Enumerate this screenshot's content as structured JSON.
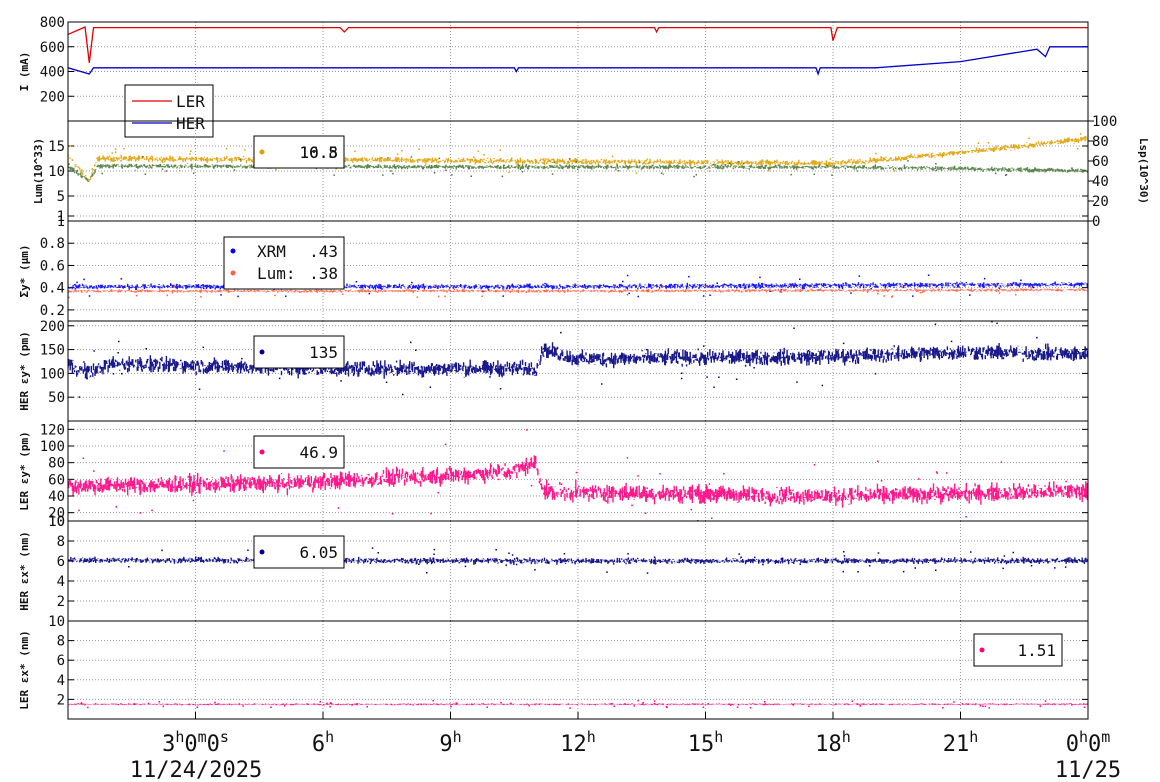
{
  "chart_data": {
    "type": "line",
    "x_axis": {
      "ticks": [
        {
          "hour": 3,
          "main": "3",
          "sup": "h",
          "main2": "0",
          "sup2": "m",
          "main3": "0",
          "sup3": "s"
        },
        {
          "hour": 6,
          "main": "6",
          "sup": "h"
        },
        {
          "hour": 9,
          "main": "9",
          "sup": "h"
        },
        {
          "hour": 12,
          "main": "12",
          "sup": "h"
        },
        {
          "hour": 15,
          "main": "15",
          "sup": "h"
        },
        {
          "hour": 18,
          "main": "18",
          "sup": "h"
        },
        {
          "hour": 21,
          "main": "21",
          "sup": "h"
        },
        {
          "hour": 24,
          "main": "0",
          "sup": "h",
          "main2": "0",
          "sup2": "m"
        }
      ],
      "start_date": "11/24/2025",
      "end_date": "11/25",
      "range_hours": [
        0.0,
        24.0
      ]
    },
    "panels": [
      {
        "ylabel": "I (mA)",
        "ylim": [
          0,
          800
        ],
        "yticks": [
          "200",
          "400",
          "600",
          "800"
        ],
        "legend": [
          {
            "label": "LER",
            "color": "#e00000"
          },
          {
            "label": "HER",
            "color": "#0000cc"
          }
        ],
        "series": [
          {
            "name": "LER",
            "color": "#e00000",
            "kind": "line",
            "points": [
              [
                0.0,
                700
              ],
              [
                0.4,
                760
              ],
              [
                0.5,
                470
              ],
              [
                0.6,
                755
              ],
              [
                6.4,
                755
              ],
              [
                6.5,
                720
              ],
              [
                6.6,
                755
              ],
              [
                13.8,
                755
              ],
              [
                13.85,
                720
              ],
              [
                13.9,
                755
              ],
              [
                17.95,
                755
              ],
              [
                18.0,
                650
              ],
              [
                18.1,
                755
              ],
              [
                24.0,
                755
              ]
            ]
          },
          {
            "name": "HER",
            "color": "#0000cc",
            "kind": "line",
            "points": [
              [
                0.0,
                430
              ],
              [
                0.5,
                380
              ],
              [
                0.6,
                430
              ],
              [
                10.5,
                430
              ],
              [
                10.55,
                400
              ],
              [
                10.6,
                430
              ],
              [
                17.6,
                430
              ],
              [
                17.65,
                380
              ],
              [
                17.7,
                430
              ],
              [
                19.0,
                430
              ],
              [
                21.0,
                480
              ],
              [
                22.8,
                580
              ],
              [
                23.0,
                520
              ],
              [
                23.1,
                600
              ],
              [
                24.0,
                600
              ]
            ]
          }
        ]
      },
      {
        "ylabel": "Lum(10^33)",
        "ylim": [
          0,
          20
        ],
        "yticks": [
          "1",
          "5",
          "10",
          "15"
        ],
        "ylabel_right": "Lsp(10^30)",
        "yticks_right": [
          "0",
          "20",
          "40",
          "60",
          "80",
          "100"
        ],
        "legend_value": "16.8",
        "legend_value_overlap": "10.5",
        "series": [
          {
            "name": "Lum",
            "color": "#e0a000",
            "kind": "noisy",
            "noise": 0.5,
            "points": [
              [
                0.0,
                13.0
              ],
              [
                0.5,
                8.0
              ],
              [
                0.7,
                12.5
              ],
              [
                10.5,
                12.0
              ],
              [
                18.0,
                11.5
              ],
              [
                19.5,
                12.5
              ],
              [
                22.0,
                14.5
              ],
              [
                23.5,
                16.0
              ],
              [
                24.0,
                16.5
              ]
            ]
          },
          {
            "name": "Lsp",
            "color": "#4a7a3a",
            "kind": "noisy",
            "noise": 0.4,
            "points": [
              [
                0.0,
                11.0
              ],
              [
                0.5,
                8.0
              ],
              [
                0.7,
                11.0
              ],
              [
                10.5,
                10.8
              ],
              [
                18.0,
                10.8
              ],
              [
                21.0,
                10.5
              ],
              [
                24.0,
                10.0
              ]
            ]
          }
        ]
      },
      {
        "ylabel": "Σy* (μm)",
        "ylim": [
          0.1,
          1.0
        ],
        "yticks": [
          "0.2",
          "0.4",
          "0.6",
          "0.8",
          "1"
        ],
        "legend": [
          {
            "label": "XRM",
            "value": ".43",
            "color": "#0000ff"
          },
          {
            "label": "Lum:",
            "value": ".38",
            "color": "#ff6040"
          }
        ],
        "series": [
          {
            "name": "XRM",
            "color": "#0000ff",
            "kind": "noisy",
            "noise": 0.02,
            "points": [
              [
                0.0,
                0.41
              ],
              [
                12.0,
                0.41
              ],
              [
                24.0,
                0.43
              ]
            ]
          },
          {
            "name": "Lum",
            "color": "#ff6040",
            "kind": "noisy",
            "noise": 0.012,
            "points": [
              [
                0.0,
                0.37
              ],
              [
                12.0,
                0.37
              ],
              [
                24.0,
                0.38
              ]
            ]
          }
        ]
      },
      {
        "ylabel": "HER εy* (pm)",
        "ylim": [
          0,
          210
        ],
        "yticks": [
          "50",
          "100",
          "150",
          "200"
        ],
        "legend_value": "135",
        "series": [
          {
            "name": "HER εy*",
            "color": "#000080",
            "kind": "noisy",
            "noise": 14,
            "points": [
              [
                0.0,
                120
              ],
              [
                0.5,
                100
              ],
              [
                1.0,
                120
              ],
              [
                6.0,
                110
              ],
              [
                11.0,
                110
              ],
              [
                11.2,
                150
              ],
              [
                12.0,
                130
              ],
              [
                18.0,
                135
              ],
              [
                21.0,
                145
              ],
              [
                24.0,
                140
              ]
            ]
          }
        ]
      },
      {
        "ylabel": "LER εy* (pm)",
        "ylim": [
          10,
          130
        ],
        "yticks": [
          "10",
          "20",
          "40",
          "60",
          "80",
          "100",
          "120"
        ],
        "legend_value": "46.9",
        "series": [
          {
            "name": "LER εy*",
            "color": "#ff0080",
            "kind": "noisy",
            "noise": 9,
            "points": [
              [
                0.0,
                52
              ],
              [
                5.0,
                55
              ],
              [
                9.0,
                65
              ],
              [
                10.5,
                70
              ],
              [
                11.0,
                80
              ],
              [
                11.2,
                45
              ],
              [
                18.0,
                40
              ],
              [
                24.0,
                46
              ]
            ]
          }
        ]
      },
      {
        "ylabel": "HER εx* (nm)",
        "ylim": [
          0,
          10
        ],
        "yticks": [
          "2",
          "4",
          "6",
          "8",
          "10"
        ],
        "legend_value": "6.05",
        "series": [
          {
            "name": "HER εx*",
            "color": "#000080",
            "kind": "noisy",
            "noise": 0.25,
            "points": [
              [
                0.0,
                6.1
              ],
              [
                12.0,
                6.0
              ],
              [
                24.0,
                6.05
              ]
            ]
          }
        ]
      },
      {
        "ylabel": "LER εx* (nm)",
        "ylim": [
          0,
          10
        ],
        "yticks": [
          "2",
          "4",
          "6",
          "8",
          "10"
        ],
        "legend_value": "1.51",
        "series": [
          {
            "name": "LER εx*",
            "color": "#ff0080",
            "kind": "noisy",
            "noise": 0.08,
            "points": [
              [
                0.0,
                1.5
              ],
              [
                12.0,
                1.5
              ],
              [
                24.0,
                1.51
              ]
            ]
          }
        ]
      }
    ],
    "grid": true
  }
}
